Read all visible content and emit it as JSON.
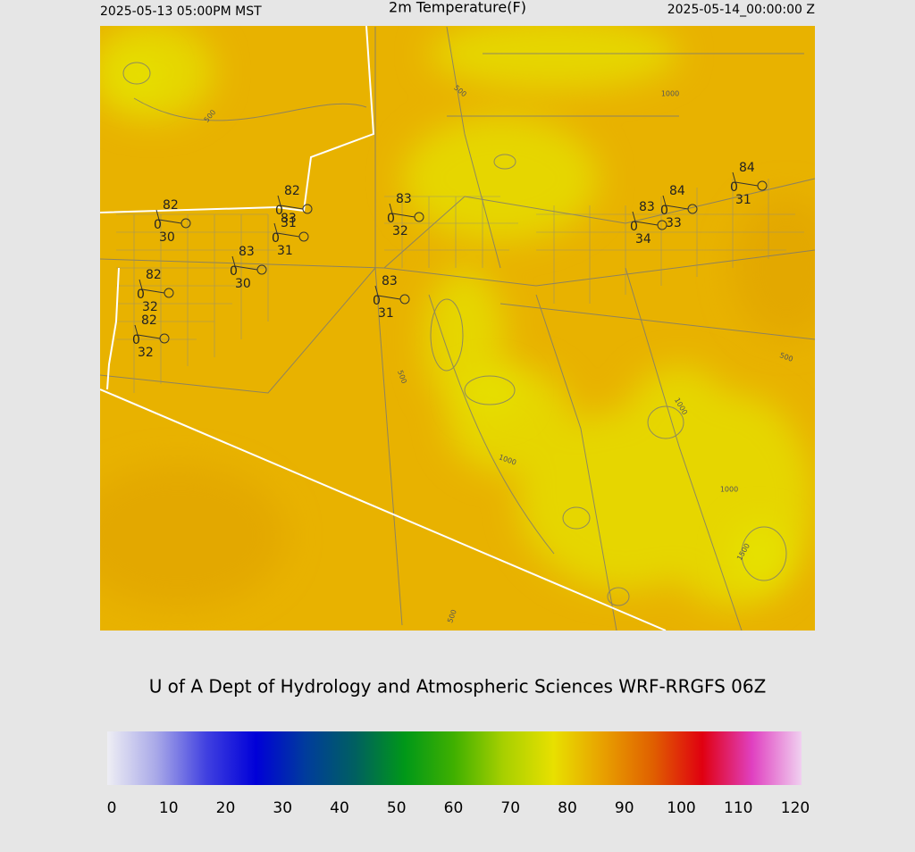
{
  "header": {
    "left": "2025-05-13 05:00PM MST",
    "title": "2m Temperature(F)",
    "right": "2025-05-14_00:00:00 Z"
  },
  "credit": "U of A Dept of Hydrology and Atmospheric Sciences WRF-RRGFS 06Z",
  "colorbar": {
    "ticks": [
      0,
      10,
      20,
      30,
      40,
      50,
      60,
      70,
      80,
      90,
      100,
      110,
      120
    ],
    "colors": [
      "#eeeef4",
      "#a8a8e8",
      "#4040e0",
      "#0000d8",
      "#003c9c",
      "#006060",
      "#009818",
      "#40b000",
      "#a8d000",
      "#e8e000",
      "#e8a000",
      "#e06000",
      "#e00010",
      "#e040c0",
      "#f0d0f0"
    ]
  },
  "stations": [
    {
      "temp": "82",
      "calm": "0",
      "dew": "30"
    },
    {
      "temp": "82",
      "calm": "0",
      "dew": "31"
    },
    {
      "temp": "83",
      "calm": "0",
      "dew": "31"
    },
    {
      "temp": "83",
      "calm": "0",
      "dew": "30"
    },
    {
      "temp": "82",
      "calm": "0",
      "dew": "32"
    },
    {
      "temp": "82",
      "calm": "0",
      "dew": "32"
    },
    {
      "temp": "83",
      "calm": "0",
      "dew": "32"
    },
    {
      "temp": "83",
      "calm": "0",
      "dew": "31"
    },
    {
      "temp": "84",
      "calm": "0",
      "dew": "33"
    },
    {
      "temp": "83",
      "calm": "0",
      "dew": "34"
    },
    {
      "temp": "84",
      "calm": "0",
      "dew": "31"
    }
  ],
  "contour_labels": [
    "500",
    "500",
    "1000",
    "500",
    "1000",
    "1000",
    "1000",
    "1500",
    "500",
    "500"
  ]
}
